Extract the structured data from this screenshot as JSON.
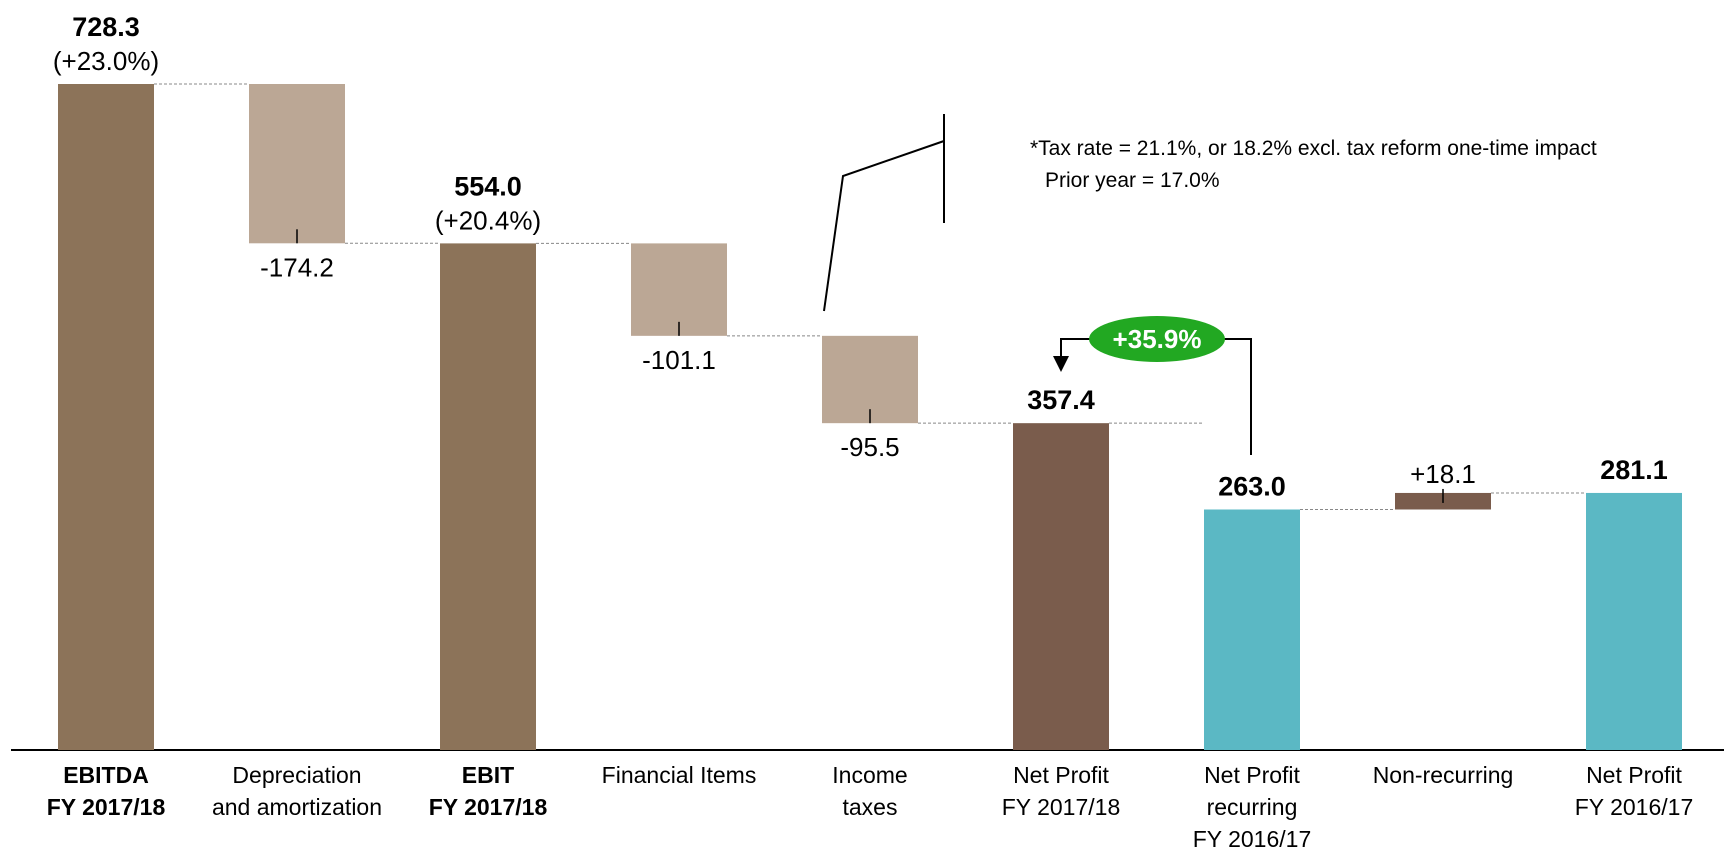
{
  "chart_data": {
    "type": "waterfall",
    "categories": [
      "EBITDA\nFY 2017/18",
      "Depreciation\nand amortization",
      "EBIT\nFY 2017/18",
      "Financial Items",
      "Income\ntaxes",
      "Net Profit\nFY 2017/18",
      "Net Profit\nrecurring\nFY 2016/17",
      "Non-recurring",
      "Net Profit\nFY 2016/17"
    ],
    "category_bold": [
      true,
      false,
      true,
      false,
      false,
      false,
      false,
      false,
      false
    ],
    "measures": [
      "total",
      "relative",
      "total",
      "relative",
      "relative",
      "total",
      "total",
      "relative",
      "total"
    ],
    "values": [
      728.3,
      -174.2,
      554.0,
      -101.1,
      -95.5,
      357.4,
      263.0,
      18.1,
      281.1
    ],
    "value_labels": [
      "728.3",
      "-174.2",
      "554.0",
      "-101.1",
      "-95.5",
      "357.4",
      "263.0",
      "+18.1",
      "281.1"
    ],
    "value_sublabels": [
      "(+23.0%)",
      null,
      "(+20.4%)",
      null,
      null,
      null,
      null,
      null,
      null
    ],
    "colors": [
      "#8c7359",
      "#bba795",
      "#8c7359",
      "#bba795",
      "#bba795",
      "#7a5c4c",
      "#5bb8c4",
      "#7a5c4c",
      "#5bb8c4"
    ],
    "note": [
      "*Tax rate = 21.1%, or 18.2% excl. tax reform one-time impact",
      "Prior year = 17.0%"
    ],
    "growth_badge": "+35.9%",
    "badge_color": "#22a822"
  }
}
